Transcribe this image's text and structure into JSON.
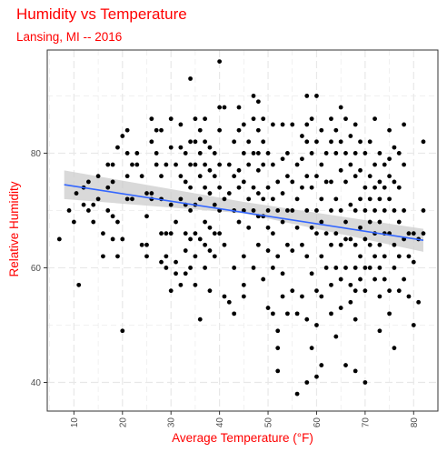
{
  "chart_data": {
    "type": "scatter",
    "title": "Humidity vs Temperature",
    "subtitle": "Lansing, MI -- 2016",
    "xlabel": "Average Temperature (°F)",
    "ylabel": "Relative Humidity",
    "xlim": [
      4.5,
      85
    ],
    "ylim": [
      35,
      98
    ],
    "xticks": [
      10,
      20,
      30,
      40,
      50,
      60,
      70,
      80
    ],
    "yticks": [
      40,
      60,
      80
    ],
    "grid": true,
    "legend": "none",
    "colors": {
      "title": "#ff0000",
      "axis_text": "#ff0000",
      "points": "#000000",
      "trend_line": "#3366ff",
      "confidence_band": "#cccccc",
      "grid": "#e8e8e8",
      "panel_border": "#333333"
    },
    "trend": {
      "x": [
        8,
        82
      ],
      "y": [
        74.5,
        64.8
      ],
      "ci_upper": [
        77,
        66.8
      ],
      "ci_lower": [
        72,
        62.8
      ],
      "ci_mid_upper": 71.5,
      "ci_mid_lower": 69.5,
      "ci_mid_x": 45
    },
    "points": [
      [
        7,
        65
      ],
      [
        9,
        70
      ],
      [
        10,
        68
      ],
      [
        10.5,
        73
      ],
      [
        11,
        57
      ],
      [
        12,
        74
      ],
      [
        12,
        71
      ],
      [
        13,
        75
      ],
      [
        13,
        70
      ],
      [
        14,
        71
      ],
      [
        14,
        68
      ],
      [
        15,
        72
      ],
      [
        15,
        76
      ],
      [
        16,
        62
      ],
      [
        16,
        66
      ],
      [
        17,
        78
      ],
      [
        17,
        74
      ],
      [
        17,
        70
      ],
      [
        18,
        78
      ],
      [
        18,
        75
      ],
      [
        18,
        69
      ],
      [
        18,
        65
      ],
      [
        19,
        81
      ],
      [
        19,
        68
      ],
      [
        19,
        62
      ],
      [
        20,
        83
      ],
      [
        20,
        65
      ],
      [
        20,
        49
      ],
      [
        21,
        84
      ],
      [
        21,
        80
      ],
      [
        21,
        76
      ],
      [
        21,
        72
      ],
      [
        22,
        78
      ],
      [
        22,
        72
      ],
      [
        23,
        80
      ],
      [
        23,
        78
      ],
      [
        24,
        64
      ],
      [
        24,
        76
      ],
      [
        25,
        73
      ],
      [
        25,
        69
      ],
      [
        25,
        64
      ],
      [
        25,
        62
      ],
      [
        26,
        82
      ],
      [
        26,
        86
      ],
      [
        26,
        73
      ],
      [
        26,
        72
      ],
      [
        27,
        84
      ],
      [
        27,
        80
      ],
      [
        27,
        78
      ],
      [
        28,
        84
      ],
      [
        28,
        76
      ],
      [
        28,
        72
      ],
      [
        28,
        66
      ],
      [
        28,
        61
      ],
      [
        29,
        78
      ],
      [
        29,
        66
      ],
      [
        29,
        62
      ],
      [
        29,
        60
      ],
      [
        30,
        86
      ],
      [
        30,
        81
      ],
      [
        30,
        71
      ],
      [
        30,
        66
      ],
      [
        30,
        56
      ],
      [
        31,
        78
      ],
      [
        31,
        68
      ],
      [
        31,
        61
      ],
      [
        31,
        59
      ],
      [
        32,
        85
      ],
      [
        32,
        81
      ],
      [
        32,
        76
      ],
      [
        32,
        72
      ],
      [
        32,
        57
      ],
      [
        33,
        80
      ],
      [
        33,
        75
      ],
      [
        33,
        71
      ],
      [
        33,
        66
      ],
      [
        33,
        63
      ],
      [
        33,
        59
      ],
      [
        34,
        93
      ],
      [
        34,
        82
      ],
      [
        34,
        78
      ],
      [
        34,
        74
      ],
      [
        34,
        70
      ],
      [
        34,
        65
      ],
      [
        34,
        60
      ],
      [
        35,
        86
      ],
      [
        35,
        82
      ],
      [
        35,
        78
      ],
      [
        35,
        71
      ],
      [
        35,
        66
      ],
      [
        35,
        62
      ],
      [
        35,
        57
      ],
      [
        36,
        84
      ],
      [
        36,
        80
      ],
      [
        36,
        76
      ],
      [
        36,
        72
      ],
      [
        36,
        65
      ],
      [
        36,
        51
      ],
      [
        37,
        86
      ],
      [
        37,
        82
      ],
      [
        37,
        78
      ],
      [
        37,
        74
      ],
      [
        37,
        68
      ],
      [
        37,
        64
      ],
      [
        37,
        60
      ],
      [
        38,
        81
      ],
      [
        38,
        77
      ],
      [
        38,
        73
      ],
      [
        38,
        67
      ],
      [
        38,
        63
      ],
      [
        38,
        56
      ],
      [
        39,
        80
      ],
      [
        39,
        76
      ],
      [
        39,
        71
      ],
      [
        39,
        66
      ],
      [
        39,
        62
      ],
      [
        40,
        96
      ],
      [
        40,
        88
      ],
      [
        40,
        84
      ],
      [
        40,
        78
      ],
      [
        40,
        74
      ],
      [
        40,
        70
      ],
      [
        40,
        66
      ],
      [
        41,
        88
      ],
      [
        41,
        72
      ],
      [
        41,
        64
      ],
      [
        41,
        55
      ],
      [
        42,
        78
      ],
      [
        42,
        73
      ],
      [
        42,
        54
      ],
      [
        43,
        82
      ],
      [
        43,
        76
      ],
      [
        43,
        70
      ],
      [
        43,
        60
      ],
      [
        43,
        52
      ],
      [
        44,
        88
      ],
      [
        44,
        84
      ],
      [
        44,
        77
      ],
      [
        44,
        74
      ],
      [
        44,
        68
      ],
      [
        45,
        85
      ],
      [
        45,
        80
      ],
      [
        45,
        75
      ],
      [
        45,
        70
      ],
      [
        45,
        62
      ],
      [
        45,
        57
      ],
      [
        45,
        55
      ],
      [
        46,
        82
      ],
      [
        46,
        78
      ],
      [
        46,
        72
      ],
      [
        46,
        67
      ],
      [
        47,
        90
      ],
      [
        47,
        86
      ],
      [
        47,
        80
      ],
      [
        47,
        74
      ],
      [
        47,
        70
      ],
      [
        47,
        60
      ],
      [
        48,
        89
      ],
      [
        48,
        84
      ],
      [
        48,
        80
      ],
      [
        48,
        77
      ],
      [
        48,
        73
      ],
      [
        48,
        69
      ],
      [
        48,
        64
      ],
      [
        49,
        86
      ],
      [
        49,
        82
      ],
      [
        49,
        78
      ],
      [
        49,
        72
      ],
      [
        49,
        69
      ],
      [
        49,
        58
      ],
      [
        50,
        80
      ],
      [
        50,
        74
      ],
      [
        50,
        70
      ],
      [
        50,
        67
      ],
      [
        50,
        63
      ],
      [
        50,
        53
      ],
      [
        51,
        85
      ],
      [
        51,
        78
      ],
      [
        51,
        72
      ],
      [
        51,
        66
      ],
      [
        51,
        60
      ],
      [
        51,
        52
      ],
      [
        52,
        75
      ],
      [
        52,
        70
      ],
      [
        52,
        62
      ],
      [
        52,
        49
      ],
      [
        52,
        46
      ],
      [
        52,
        42
      ],
      [
        53,
        85
      ],
      [
        53,
        79
      ],
      [
        53,
        73
      ],
      [
        53,
        68
      ],
      [
        53,
        59
      ],
      [
        53,
        55
      ],
      [
        54,
        80
      ],
      [
        54,
        76
      ],
      [
        54,
        70
      ],
      [
        54,
        64
      ],
      [
        54,
        52
      ],
      [
        55,
        85
      ],
      [
        55,
        75
      ],
      [
        55,
        70
      ],
      [
        55,
        63
      ],
      [
        55,
        56
      ],
      [
        56,
        78
      ],
      [
        56,
        72
      ],
      [
        56,
        67
      ],
      [
        56,
        52
      ],
      [
        56,
        38
      ],
      [
        57,
        83
      ],
      [
        57,
        79
      ],
      [
        57,
        74
      ],
      [
        57,
        64
      ],
      [
        57,
        55
      ],
      [
        58,
        90
      ],
      [
        58,
        85
      ],
      [
        58,
        82
      ],
      [
        58,
        76
      ],
      [
        58,
        70
      ],
      [
        58,
        62
      ],
      [
        58,
        51
      ],
      [
        58,
        40
      ],
      [
        59,
        86
      ],
      [
        59,
        80
      ],
      [
        59,
        74
      ],
      [
        59,
        67
      ],
      [
        59,
        59
      ],
      [
        59,
        46
      ],
      [
        60,
        90
      ],
      [
        60,
        82
      ],
      [
        60,
        76
      ],
      [
        60,
        70
      ],
      [
        60,
        66
      ],
      [
        60,
        56
      ],
      [
        60,
        50
      ],
      [
        60,
        41
      ],
      [
        61,
        84
      ],
      [
        61,
        78
      ],
      [
        61,
        72
      ],
      [
        61,
        68
      ],
      [
        61,
        62
      ],
      [
        61,
        55
      ],
      [
        61,
        43
      ],
      [
        62,
        80
      ],
      [
        62,
        75
      ],
      [
        62,
        66
      ],
      [
        62,
        60
      ],
      [
        63,
        86
      ],
      [
        63,
        82
      ],
      [
        63,
        75
      ],
      [
        63,
        70
      ],
      [
        63,
        64
      ],
      [
        63,
        57
      ],
      [
        63,
        52
      ],
      [
        64,
        84
      ],
      [
        64,
        80
      ],
      [
        64,
        72
      ],
      [
        64,
        66
      ],
      [
        64,
        60
      ],
      [
        64,
        48
      ],
      [
        65,
        88
      ],
      [
        65,
        82
      ],
      [
        65,
        77
      ],
      [
        65,
        70
      ],
      [
        65,
        64
      ],
      [
        65,
        58
      ],
      [
        65,
        53
      ],
      [
        66,
        86
      ],
      [
        66,
        80
      ],
      [
        66,
        75
      ],
      [
        66,
        68
      ],
      [
        66,
        65
      ],
      [
        66,
        60
      ],
      [
        66,
        43
      ],
      [
        67,
        83
      ],
      [
        67,
        78
      ],
      [
        67,
        71
      ],
      [
        67,
        65
      ],
      [
        67,
        57
      ],
      [
        67,
        54
      ],
      [
        68,
        85
      ],
      [
        68,
        80
      ],
      [
        68,
        76
      ],
      [
        68,
        70
      ],
      [
        68,
        64
      ],
      [
        68,
        60
      ],
      [
        68,
        56
      ],
      [
        68,
        51
      ],
      [
        68,
        42
      ],
      [
        69,
        82
      ],
      [
        69,
        77
      ],
      [
        69,
        72
      ],
      [
        69,
        67
      ],
      [
        69,
        62
      ],
      [
        69,
        58
      ],
      [
        70,
        80
      ],
      [
        70,
        74
      ],
      [
        70,
        70
      ],
      [
        70,
        65
      ],
      [
        70,
        60
      ],
      [
        70,
        56
      ],
      [
        70,
        40
      ],
      [
        71,
        82
      ],
      [
        71,
        76
      ],
      [
        71,
        72
      ],
      [
        71,
        68
      ],
      [
        71,
        64
      ],
      [
        71,
        60
      ],
      [
        72,
        86
      ],
      [
        72,
        78
      ],
      [
        72,
        74
      ],
      [
        72,
        70
      ],
      [
        72,
        66
      ],
      [
        72,
        62
      ],
      [
        72,
        58
      ],
      [
        73,
        80
      ],
      [
        73,
        75
      ],
      [
        73,
        72
      ],
      [
        73,
        68
      ],
      [
        73,
        64
      ],
      [
        73,
        60
      ],
      [
        73,
        55
      ],
      [
        73,
        49
      ],
      [
        74,
        78
      ],
      [
        74,
        74
      ],
      [
        74,
        70
      ],
      [
        74,
        66
      ],
      [
        74,
        62
      ],
      [
        74,
        58
      ],
      [
        75,
        84
      ],
      [
        75,
        79
      ],
      [
        75,
        76
      ],
      [
        75,
        72
      ],
      [
        75,
        66
      ],
      [
        75,
        56
      ],
      [
        75,
        52
      ],
      [
        76,
        81
      ],
      [
        76,
        75
      ],
      [
        76,
        70
      ],
      [
        76,
        64
      ],
      [
        76,
        60
      ],
      [
        76,
        46
      ],
      [
        77,
        80
      ],
      [
        77,
        74
      ],
      [
        77,
        68
      ],
      [
        77,
        62
      ],
      [
        77,
        56
      ],
      [
        78,
        85
      ],
      [
        78,
        78
      ],
      [
        78,
        70
      ],
      [
        78,
        65
      ],
      [
        78,
        58
      ],
      [
        79,
        66
      ],
      [
        79,
        62
      ],
      [
        79,
        55
      ],
      [
        80,
        66
      ],
      [
        80,
        61
      ],
      [
        80,
        50
      ],
      [
        81,
        54
      ],
      [
        81,
        65
      ],
      [
        82,
        82
      ],
      [
        82,
        70
      ],
      [
        82,
        66
      ]
    ]
  }
}
